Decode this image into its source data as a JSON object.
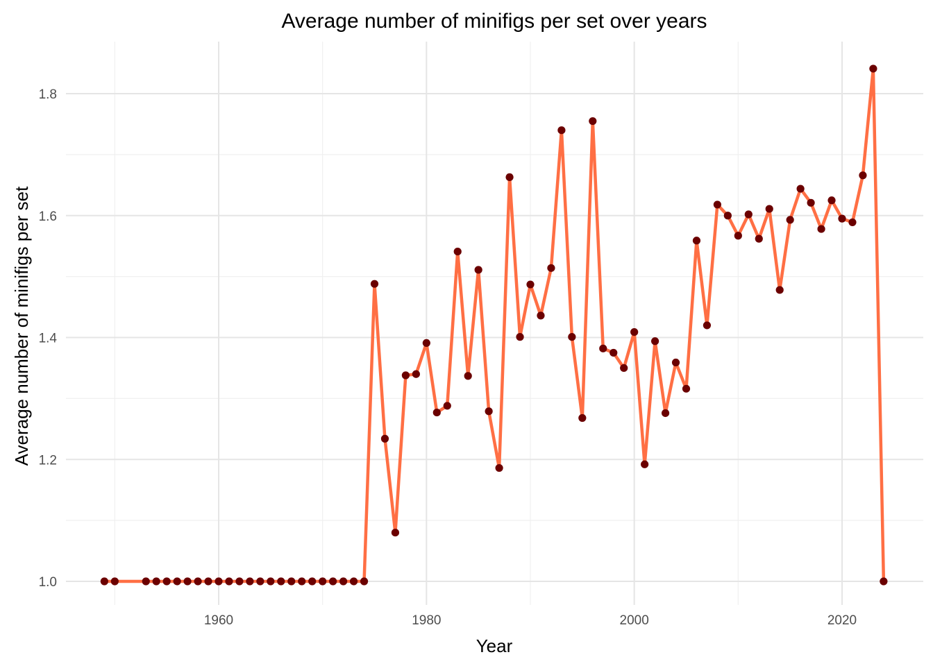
{
  "chart_data": {
    "type": "line",
    "title": "Average number of minifigs per set over years",
    "xlabel": "Year",
    "ylabel": "Average number of minifigs per set",
    "xlim": [
      1949,
      2024
    ],
    "ylim": [
      1.0,
      1.84
    ],
    "x_ticks": [
      1960,
      1980,
      2000,
      2020
    ],
    "x_tick_labels": [
      "1960",
      "1980",
      "2000",
      "2020"
    ],
    "y_ticks": [
      1.0,
      1.2,
      1.4,
      1.6,
      1.8
    ],
    "y_tick_labels": [
      "1.0",
      "1.2",
      "1.4",
      "1.6",
      "1.8"
    ],
    "grid": true,
    "legend": "none",
    "colors": {
      "line": "#ff6f44",
      "point": "#6b0000"
    },
    "x": [
      1949,
      1950,
      1953,
      1954,
      1955,
      1956,
      1957,
      1958,
      1959,
      1960,
      1961,
      1962,
      1963,
      1964,
      1965,
      1966,
      1967,
      1968,
      1969,
      1970,
      1971,
      1972,
      1973,
      1974,
      1975,
      1976,
      1977,
      1978,
      1979,
      1980,
      1981,
      1982,
      1983,
      1984,
      1985,
      1986,
      1987,
      1988,
      1989,
      1990,
      1991,
      1992,
      1993,
      1994,
      1995,
      1996,
      1997,
      1998,
      1999,
      2000,
      2001,
      2002,
      2003,
      2004,
      2005,
      2006,
      2007,
      2008,
      2009,
      2010,
      2011,
      2012,
      2013,
      2014,
      2015,
      2016,
      2017,
      2018,
      2019,
      2020,
      2021,
      2022,
      2023,
      2024
    ],
    "series": [
      {
        "values": [
          1.0,
          1.0,
          1.0,
          1.0,
          1.0,
          1.0,
          1.0,
          1.0,
          1.0,
          1.0,
          1.0,
          1.0,
          1.0,
          1.0,
          1.0,
          1.0,
          1.0,
          1.0,
          1.0,
          1.0,
          1.0,
          1.0,
          1.0,
          1.0,
          1.488,
          1.234,
          1.08,
          1.338,
          1.34,
          1.391,
          1.277,
          1.288,
          1.541,
          1.337,
          1.511,
          1.279,
          1.186,
          1.663,
          1.401,
          1.487,
          1.436,
          1.514,
          1.74,
          1.401,
          1.268,
          1.755,
          1.382,
          1.375,
          1.35,
          1.409,
          1.192,
          1.394,
          1.276,
          1.359,
          1.316,
          1.559,
          1.42,
          1.618,
          1.6,
          1.567,
          1.602,
          1.562,
          1.611,
          1.478,
          1.593,
          1.644,
          1.621,
          1.578,
          1.625,
          1.595,
          1.589,
          1.666,
          1.841,
          1.0
        ]
      }
    ]
  }
}
